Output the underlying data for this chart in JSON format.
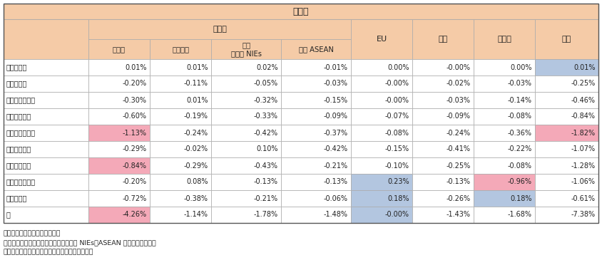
{
  "title": "寄与度",
  "row_labels": [
    "１．食料品",
    "２．原料品",
    "３．鉱物性燃料",
    "４．化学製品",
    "５．原料別製品",
    "６．一般機械",
    "７．電気機器",
    "８．輸送用機器",
    "９．その他",
    "計"
  ],
  "col_header_top": [
    "アジア",
    "EU",
    "米国",
    "その他",
    "世界"
  ],
  "col_header_sub": [
    "アジア",
    "うち中国",
    "うちアジアNIEs",
    "うちASEAN",
    "EU",
    "米国",
    "その他",
    "世界"
  ],
  "data": [
    [
      "0.01%",
      "0.01%",
      "0.02%",
      "-0.01%",
      "0.00%",
      "-0.00%",
      "0.00%",
      "0.01%"
    ],
    [
      "-0.20%",
      "-0.11%",
      "-0.05%",
      "-0.03%",
      "-0.00%",
      "-0.02%",
      "-0.03%",
      "-0.25%"
    ],
    [
      "-0.30%",
      "0.01%",
      "-0.32%",
      "-0.15%",
      "-0.00%",
      "-0.03%",
      "-0.14%",
      "-0.46%"
    ],
    [
      "-0.60%",
      "-0.19%",
      "-0.33%",
      "-0.09%",
      "-0.07%",
      "-0.09%",
      "-0.08%",
      "-0.84%"
    ],
    [
      "-1.13%",
      "-0.24%",
      "-0.42%",
      "-0.37%",
      "-0.08%",
      "-0.24%",
      "-0.36%",
      "-1.82%"
    ],
    [
      "-0.29%",
      "-0.02%",
      "0.10%",
      "-0.42%",
      "-0.15%",
      "-0.41%",
      "-0.22%",
      "-1.07%"
    ],
    [
      "-0.84%",
      "-0.29%",
      "-0.43%",
      "-0.21%",
      "-0.10%",
      "-0.25%",
      "-0.08%",
      "-1.28%"
    ],
    [
      "-0.20%",
      "0.08%",
      "-0.13%",
      "-0.13%",
      "0.23%",
      "-0.13%",
      "-0.96%",
      "-1.06%"
    ],
    [
      "-0.72%",
      "-0.38%",
      "-0.21%",
      "-0.06%",
      "0.18%",
      "-0.26%",
      "0.18%",
      "-0.61%"
    ],
    [
      "-4.26%",
      "-1.14%",
      "-1.78%",
      "-1.48%",
      "-0.00%",
      "-1.43%",
      "-1.68%",
      "-7.38%"
    ]
  ],
  "cell_colors": [
    [
      "white",
      "white",
      "white",
      "white",
      "white",
      "white",
      "white",
      "#b3c6e0"
    ],
    [
      "white",
      "white",
      "white",
      "white",
      "white",
      "white",
      "white",
      "white"
    ],
    [
      "white",
      "white",
      "white",
      "white",
      "white",
      "white",
      "white",
      "white"
    ],
    [
      "white",
      "white",
      "white",
      "white",
      "white",
      "white",
      "white",
      "white"
    ],
    [
      "#f4a9b8",
      "white",
      "white",
      "white",
      "white",
      "white",
      "white",
      "#f4a9b8"
    ],
    [
      "white",
      "white",
      "white",
      "white",
      "white",
      "white",
      "white",
      "white"
    ],
    [
      "#f4a9b8",
      "white",
      "white",
      "white",
      "white",
      "white",
      "white",
      "white"
    ],
    [
      "white",
      "white",
      "white",
      "white",
      "#b3c6e0",
      "white",
      "#f4a9b8",
      "white"
    ],
    [
      "white",
      "white",
      "white",
      "white",
      "#b3c6e0",
      "white",
      "#b3c6e0",
      "white"
    ],
    [
      "#f4a9b8",
      "white",
      "white",
      "white",
      "#b3c6e0",
      "white",
      "white",
      "white"
    ]
  ],
  "header_bg": "#f5cba7",
  "border_color": "#aaaaaa",
  "highlight_pink": "#f4a9b8",
  "highlight_blue": "#b3c6e0",
  "footnote1": "備考：１．伸び率は対前年比。",
  "footnote2": "　　　２．「シンガポール」は、アジア NIEs、ASEAN 双方に含まれる。",
  "footnote3": "資料：財務省「貿易統計」から経済産業省作成。"
}
